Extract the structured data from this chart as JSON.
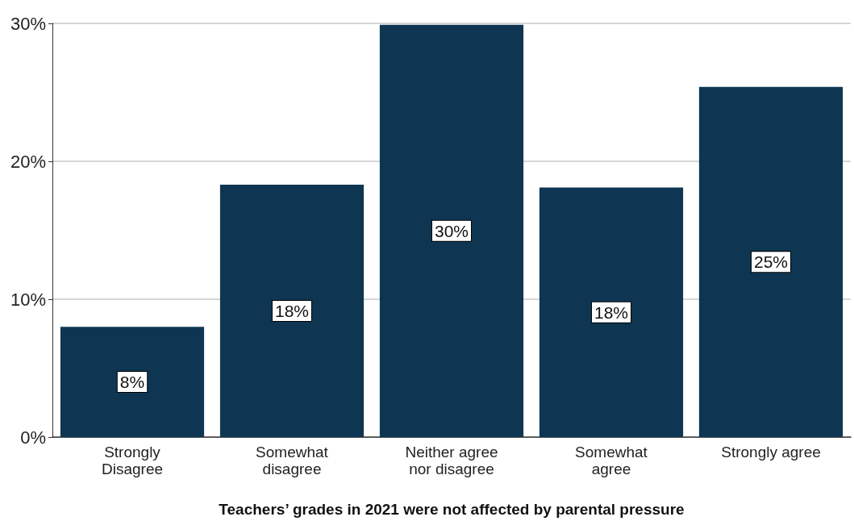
{
  "chart_data": {
    "type": "bar",
    "xlabel": "Teachers’ grades in 2021 were not affected by parental pressure",
    "categories": [
      "Strongly\nDisagree",
      "Somewhat\ndisagree",
      "Neither agree\nnor disagree",
      "Somewhat\nagree",
      "Strongly agree"
    ],
    "values": [
      8.0,
      18.3,
      29.9,
      18.1,
      25.4
    ],
    "value_labels": [
      "8%",
      "18%",
      "30%",
      "18%",
      "25%"
    ],
    "color": "#0e3652",
    "ylim": [
      0,
      30
    ],
    "yticks": [
      {
        "value": 0,
        "label": "0%"
      },
      {
        "value": 10,
        "label": "10%"
      },
      {
        "value": 20,
        "label": "20%"
      },
      {
        "value": 30,
        "label": "30%"
      }
    ],
    "grid": "y"
  }
}
